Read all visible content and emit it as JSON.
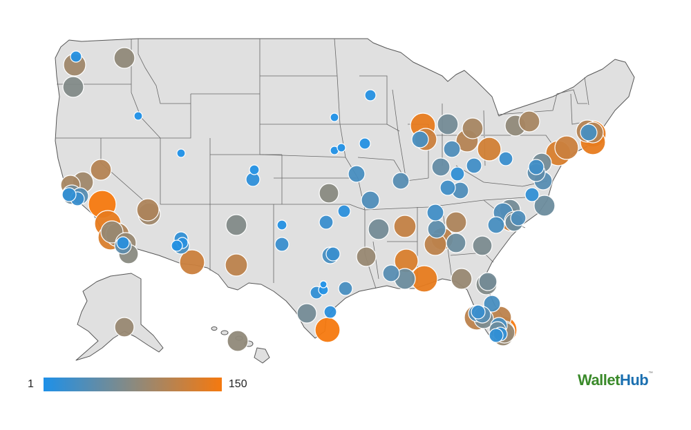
{
  "legend": {
    "min_label": "1",
    "max_label": "150",
    "color_low": "#1e90e8",
    "color_mid": "#8a8a80",
    "color_high": "#f5790f"
  },
  "brand": {
    "part1": "Wallet",
    "part2": "Hub",
    "tm": "™"
  },
  "colors": {
    "land": "#e0e0e0",
    "border": "#555555"
  },
  "cities": [
    {
      "r": 8,
      "rank": 5
    },
    {
      "r": 15,
      "rank": 80
    },
    {
      "r": 16,
      "rank": 90
    },
    {
      "r": 15,
      "rank": 70
    },
    {
      "r": 6,
      "rank": 2
    },
    {
      "r": 6,
      "rank": 2
    },
    {
      "r": 15,
      "rank": 105
    },
    {
      "r": 15,
      "rank": 90
    },
    {
      "r": 14,
      "rank": 95
    },
    {
      "r": 14,
      "rank": 60
    },
    {
      "r": 12,
      "rank": 40
    },
    {
      "r": 10,
      "rank": 20
    },
    {
      "r": 10,
      "rank": 15
    },
    {
      "r": 20,
      "rank": 150
    },
    {
      "r": 19,
      "rank": 140
    },
    {
      "r": 18,
      "rank": 130
    },
    {
      "r": 17,
      "rank": 100
    },
    {
      "r": 16,
      "rank": 85
    },
    {
      "r": 15,
      "rank": 85
    },
    {
      "r": 14,
      "rank": 75
    },
    {
      "r": 12,
      "rank": 45
    },
    {
      "r": 9,
      "rank": 10
    },
    {
      "r": 16,
      "rank": 90
    },
    {
      "r": 16,
      "rank": 100
    },
    {
      "r": 18,
      "rank": 120
    },
    {
      "r": 8,
      "rank": 8
    },
    {
      "r": 8,
      "rank": 5
    },
    {
      "r": 12,
      "rank": 30
    },
    {
      "r": 10,
      "rank": 15
    },
    {
      "r": 16,
      "rank": 110
    },
    {
      "r": 7,
      "rank": 4
    },
    {
      "r": 10,
      "rank": 12
    },
    {
      "r": 15,
      "rank": 70
    },
    {
      "r": 15,
      "rank": 80
    },
    {
      "r": 7,
      "rank": 5
    },
    {
      "r": 10,
      "rank": 20
    },
    {
      "r": 7,
      "rank": 4
    },
    {
      "r": 9,
      "rank": 15
    },
    {
      "r": 12,
      "rank": 30
    },
    {
      "r": 10,
      "rank": 20
    },
    {
      "r": 14,
      "rank": 85
    },
    {
      "r": 10,
      "rank": 30
    },
    {
      "r": 5,
      "rank": 2
    },
    {
      "r": 10,
      "rank": 20
    },
    {
      "r": 9,
      "rank": 10
    },
    {
      "r": 14,
      "rank": 75
    },
    {
      "r": 12,
      "rank": 30
    },
    {
      "r": 18,
      "rank": 150
    },
    {
      "r": 6,
      "rank": 2
    },
    {
      "r": 6,
      "rank": 3
    },
    {
      "r": 6,
      "rank": 3
    },
    {
      "r": 8,
      "rank": 5
    },
    {
      "r": 13,
      "rank": 35
    },
    {
      "r": 15,
      "rank": 60
    },
    {
      "r": 12,
      "rank": 40
    },
    {
      "r": 8,
      "rank": 6
    },
    {
      "r": 14,
      "rank": 60
    },
    {
      "r": 9,
      "rank": 10
    },
    {
      "r": 12,
      "rank": 40
    },
    {
      "r": 15,
      "rank": 55
    },
    {
      "r": 18,
      "rank": 140
    },
    {
      "r": 16,
      "rank": 120
    },
    {
      "r": 19,
      "rank": 140
    },
    {
      "r": 17,
      "rank": 130
    },
    {
      "r": 16,
      "rank": 115
    },
    {
      "r": 12,
      "rank": 30
    },
    {
      "r": 12,
      "rank": 25
    },
    {
      "r": 13,
      "rank": 50
    },
    {
      "r": 13,
      "rank": 45
    },
    {
      "r": 11,
      "rank": 25
    },
    {
      "r": 15,
      "rank": 60
    },
    {
      "r": 12,
      "rank": 35
    },
    {
      "r": 10,
      "rank": 15
    },
    {
      "r": 12,
      "rank": 35
    },
    {
      "r": 16,
      "rank": 105
    },
    {
      "r": 15,
      "rank": 95
    },
    {
      "r": 17,
      "rank": 125
    },
    {
      "r": 13,
      "rank": 60
    },
    {
      "r": 15,
      "rank": 85
    },
    {
      "r": 16,
      "rank": 110
    },
    {
      "r": 14,
      "rank": 55
    },
    {
      "r": 16,
      "rank": 110
    },
    {
      "r": 15,
      "rank": 100
    },
    {
      "r": 14,
      "rank": 65
    },
    {
      "r": 11,
      "rank": 25
    },
    {
      "r": 12,
      "rank": 30
    },
    {
      "r": 14,
      "rank": 35
    },
    {
      "r": 10,
      "rank": 20
    },
    {
      "r": 15,
      "rank": 60
    },
    {
      "r": 14,
      "rank": 70
    },
    {
      "r": 15,
      "rank": 80
    },
    {
      "r": 15,
      "rank": 95
    },
    {
      "r": 11,
      "rank": 25
    },
    {
      "r": 13,
      "rank": 40
    },
    {
      "r": 10,
      "rank": 15
    },
    {
      "r": 15,
      "rank": 55
    },
    {
      "r": 13,
      "rank": 45
    },
    {
      "r": 14,
      "rank": 60
    },
    {
      "r": 18,
      "rank": 130
    },
    {
      "r": 17,
      "rank": 120
    },
    {
      "r": 18,
      "rank": 140
    },
    {
      "r": 12,
      "rank": 30
    },
    {
      "r": 16,
      "rank": 105
    },
    {
      "r": 19,
      "rank": 140
    },
    {
      "r": 15,
      "rank": 105
    },
    {
      "r": 13,
      "rank": 55
    },
    {
      "r": 17,
      "rank": 120
    },
    {
      "r": 16,
      "rank": 110
    },
    {
      "r": 12,
      "rank": 30
    },
    {
      "r": 14,
      "rank": 65
    },
    {
      "r": 12,
      "rank": 30
    },
    {
      "r": 10,
      "rank": 20
    },
    {
      "r": 12,
      "rank": 35
    },
    {
      "r": 15,
      "rank": 80
    },
    {
      "r": 15,
      "rank": 75
    },
    {
      "r": 12,
      "rank": 55
    },
    {
      "r": 10,
      "rank": 15
    },
    {
      "r": 15,
      "rank": 85
    },
    {
      "r": 18,
      "rank": 110
    },
    {
      "r": 10,
      "rank": 15
    },
    {
      "r": 12,
      "rank": 40
    },
    {
      "r": 20,
      "rank": 150
    },
    {
      "r": 15,
      "rank": 85
    },
    {
      "r": 15,
      "rank": 70
    },
    {
      "r": 11,
      "rank": 35
    },
    {
      "r": 14,
      "rank": 85
    }
  ]
}
